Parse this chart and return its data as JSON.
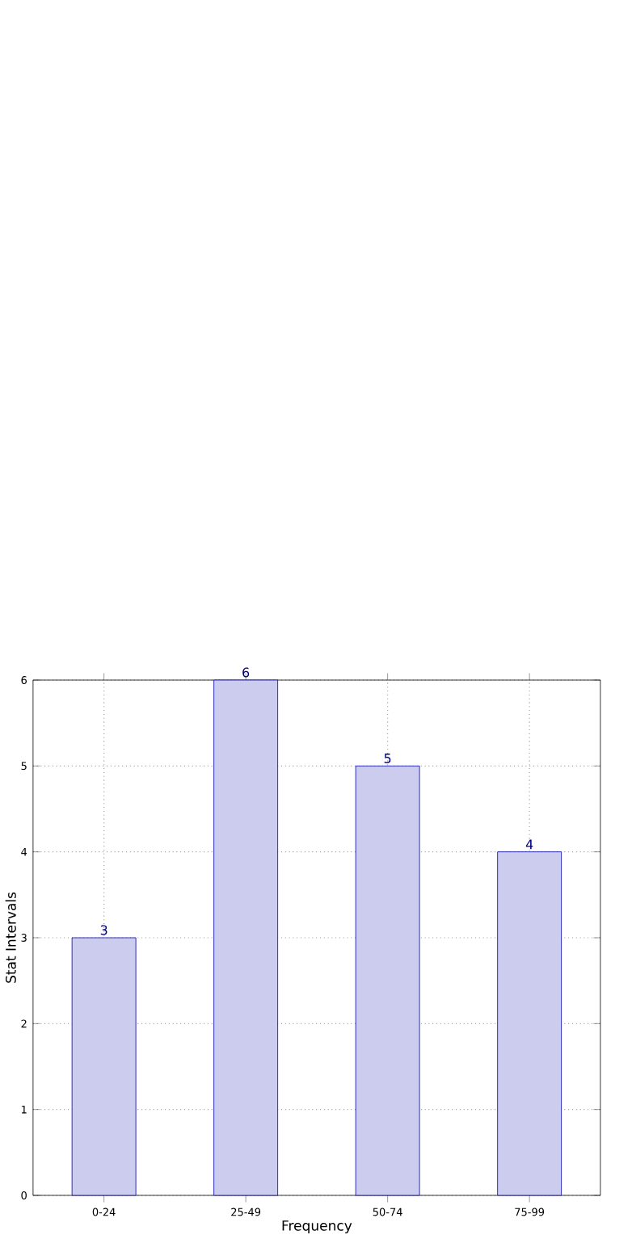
{
  "chart_data": {
    "type": "bar",
    "categories": [
      "0-24",
      "25-49",
      "50-74",
      "75-99"
    ],
    "values": [
      3,
      6,
      5,
      4
    ],
    "color": "#ccccee",
    "xlabel": "Frequency",
    "ylabel": "Stat Intervals",
    "ylim": [
      0,
      6
    ],
    "yticks": [
      0,
      1,
      2,
      3,
      4,
      5,
      6
    ],
    "grid": true,
    "data_labels": true
  }
}
